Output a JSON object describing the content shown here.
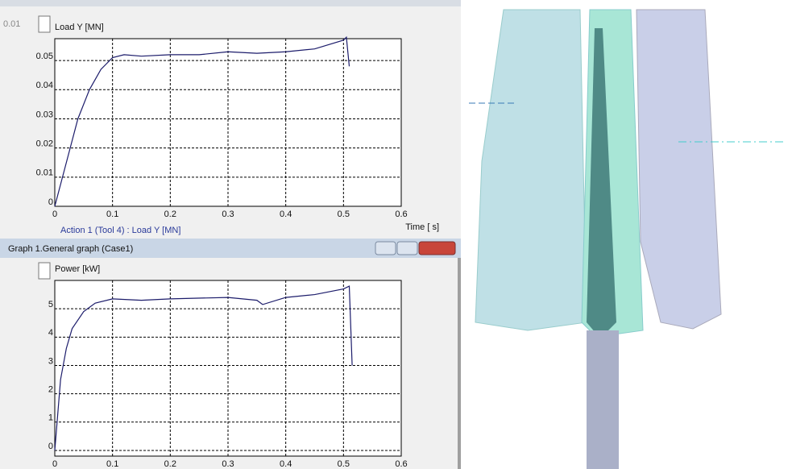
{
  "window": {
    "top_field": "0.01",
    "title": "Graph 1.General graph (Case1)"
  },
  "chart_data": [
    {
      "type": "line",
      "y_label": "Load Y [MN]",
      "x_label": "Time [ s]",
      "caption": "Action 1 (Tool 4) : Load Y [MN]",
      "color": "#1c1c6b",
      "grid": true,
      "x": [
        0,
        0.02,
        0.04,
        0.06,
        0.08,
        0.1,
        0.12,
        0.15,
        0.2,
        0.25,
        0.3,
        0.35,
        0.4,
        0.45,
        0.5,
        0.505,
        0.51
      ],
      "values": [
        0,
        0.015,
        0.03,
        0.04,
        0.047,
        0.051,
        0.052,
        0.0515,
        0.052,
        0.052,
        0.053,
        0.0525,
        0.053,
        0.054,
        0.057,
        0.058,
        0.048
      ],
      "xlim": [
        0,
        0.6
      ],
      "ylim": [
        0,
        0.0575
      ],
      "xticks": [
        0,
        0.1,
        0.2,
        0.3,
        0.4,
        0.5,
        0.6
      ],
      "yticks": [
        0,
        0.01,
        0.02,
        0.03,
        0.04,
        0.05
      ]
    },
    {
      "type": "line",
      "y_label": "Power [kW]",
      "color": "#1c1c6b",
      "grid": true,
      "x": [
        0,
        0.01,
        0.02,
        0.03,
        0.05,
        0.07,
        0.1,
        0.15,
        0.2,
        0.3,
        0.35,
        0.36,
        0.4,
        0.45,
        0.5,
        0.51,
        0.515
      ],
      "values": [
        0,
        2.5,
        3.6,
        4.3,
        4.9,
        5.2,
        5.35,
        5.3,
        5.35,
        5.4,
        5.3,
        5.15,
        5.4,
        5.5,
        5.7,
        5.8,
        3.0
      ],
      "xlim": [
        0,
        0.6
      ],
      "ylim": [
        -0.2,
        6
      ],
      "xticks": [
        0,
        0.1,
        0.2,
        0.3,
        0.4,
        0.5,
        0.6
      ],
      "yticks": [
        0,
        1,
        2,
        3,
        4,
        5
      ]
    }
  ]
}
